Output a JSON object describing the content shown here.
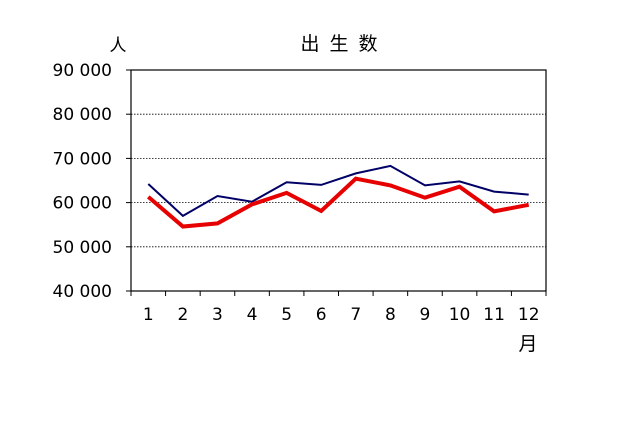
{
  "chart_data": {
    "type": "line",
    "title": "出 生 数",
    "ylabel": "人",
    "xlabel": "月",
    "ylim": [
      40000,
      90000
    ],
    "ytick_values": [
      40000,
      50000,
      60000,
      70000,
      80000,
      90000
    ],
    "ytick_labels": [
      "40 000",
      "50 000",
      "60 000",
      "70 000",
      "80 000",
      "90 000"
    ],
    "categories": [
      "1",
      "2",
      "3",
      "4",
      "5",
      "6",
      "7",
      "8",
      "9",
      "10",
      "11",
      "12"
    ],
    "grid": true,
    "legend": "none",
    "series": [
      {
        "color": "#000066",
        "values": [
          64200,
          57000,
          61500,
          60200,
          64600,
          64000,
          66600,
          68300,
          63900,
          64800,
          62500,
          61800
        ]
      },
      {
        "color": "#e60000",
        "values": [
          61300,
          54600,
          55300,
          59600,
          62200,
          58100,
          65400,
          63900,
          61100,
          63600,
          58000,
          59500
        ]
      }
    ]
  }
}
